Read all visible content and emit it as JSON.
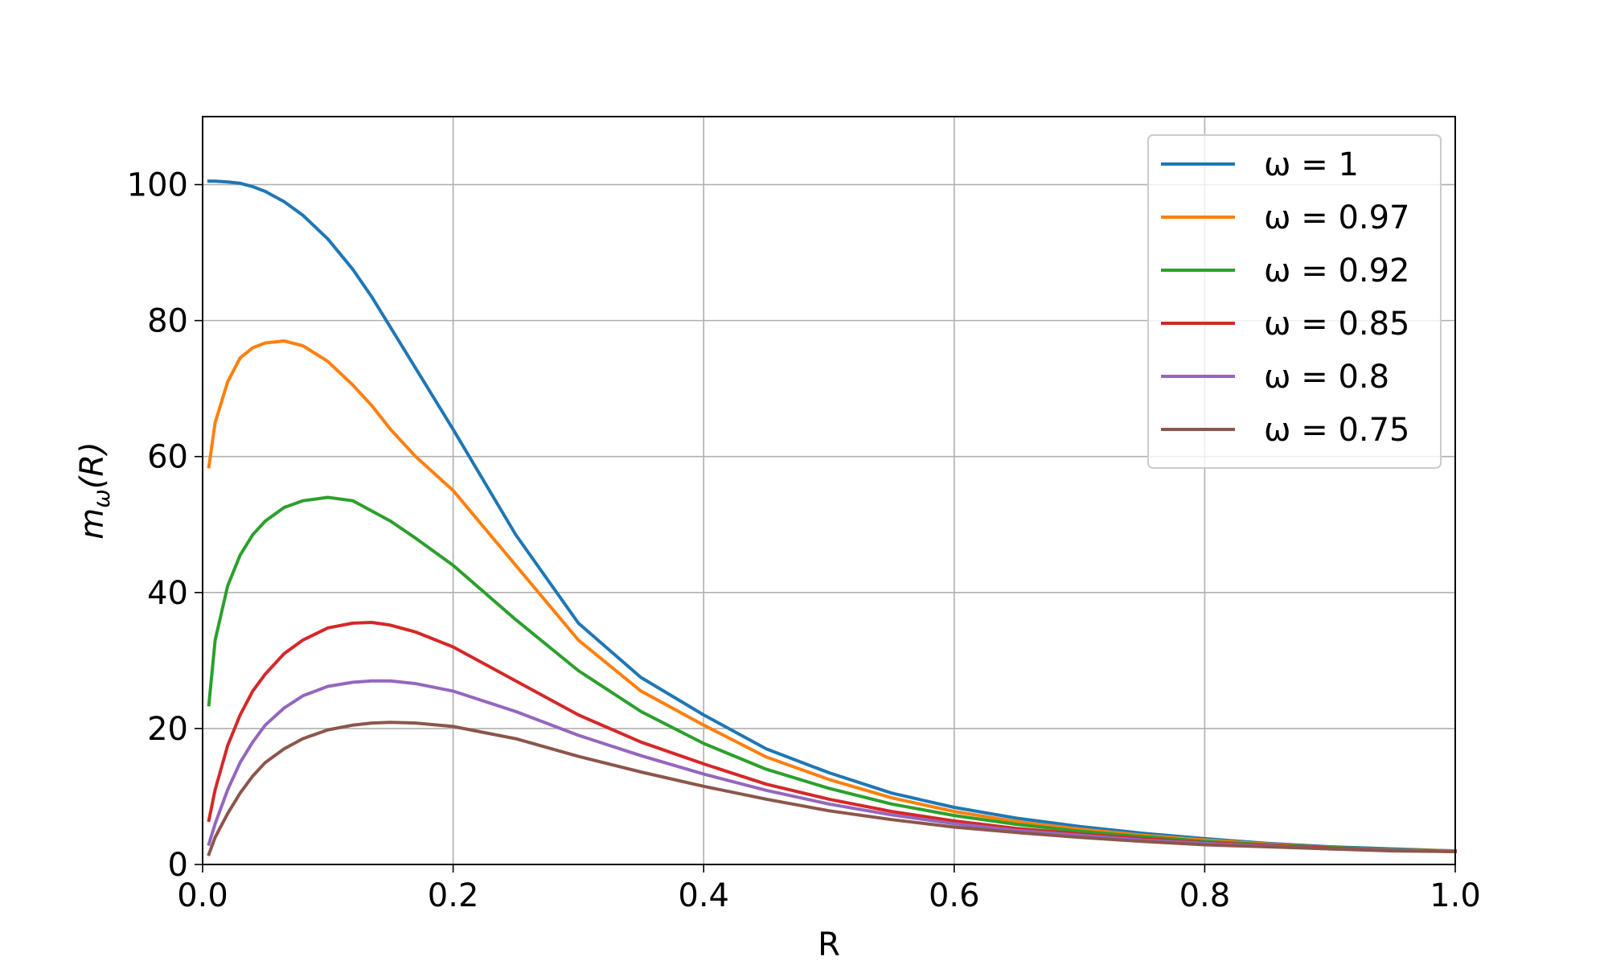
{
  "chart_data": {
    "type": "line",
    "title": "",
    "xlabel": "R",
    "ylabel_base": "m",
    "ylabel_sub": "ω",
    "ylabel_arg": "(R)",
    "xlim": [
      0.0,
      1.0
    ],
    "ylim": [
      0,
      110
    ],
    "xticks": [
      0.0,
      0.2,
      0.4,
      0.6,
      0.8,
      1.0
    ],
    "xtick_labels": [
      "0.0",
      "0.2",
      "0.4",
      "0.6",
      "0.8",
      "1.0"
    ],
    "yticks": [
      0,
      20,
      40,
      60,
      80,
      100
    ],
    "ytick_labels": [
      "0",
      "20",
      "40",
      "60",
      "80",
      "100"
    ],
    "grid": true,
    "legend_position": "top-right",
    "x": [
      0.005,
      0.01,
      0.02,
      0.03,
      0.04,
      0.05,
      0.065,
      0.08,
      0.1,
      0.12,
      0.135,
      0.15,
      0.17,
      0.2,
      0.25,
      0.3,
      0.35,
      0.4,
      0.45,
      0.5,
      0.55,
      0.6,
      0.65,
      0.7,
      0.75,
      0.8,
      0.85,
      0.9,
      0.95,
      1.0
    ],
    "series": [
      {
        "name": "ω = 1",
        "color": "#1f77b4",
        "values": [
          100.5,
          100.5,
          100.4,
          100.2,
          99.7,
          99.0,
          97.5,
          95.5,
          92.0,
          87.5,
          83.5,
          79.0,
          73.0,
          64.0,
          48.5,
          35.5,
          27.5,
          22.0,
          17.0,
          13.5,
          10.5,
          8.4,
          6.8,
          5.6,
          4.6,
          3.8,
          3.1,
          2.6,
          2.3,
          2.0
        ]
      },
      {
        "name": "ω = 0.97",
        "color": "#ff7f0e",
        "values": [
          58.5,
          65.0,
          71.0,
          74.5,
          76.0,
          76.7,
          77.0,
          76.3,
          74.0,
          70.5,
          67.5,
          64.0,
          60.0,
          55.0,
          44.0,
          33.0,
          25.5,
          20.5,
          15.8,
          12.5,
          9.8,
          7.8,
          6.3,
          5.2,
          4.3,
          3.6,
          3.0,
          2.5,
          2.2,
          2.0
        ]
      },
      {
        "name": "ω = 0.92",
        "color": "#2ca02c",
        "values": [
          23.5,
          33.0,
          41.0,
          45.5,
          48.5,
          50.5,
          52.5,
          53.5,
          54.0,
          53.5,
          52.0,
          50.5,
          48.0,
          44.0,
          36.0,
          28.5,
          22.5,
          17.8,
          14.0,
          11.2,
          8.9,
          7.2,
          5.9,
          4.9,
          4.1,
          3.4,
          2.9,
          2.5,
          2.2,
          1.9
        ]
      },
      {
        "name": "ω = 0.85",
        "color": "#d62728",
        "values": [
          6.5,
          11.0,
          17.5,
          22.0,
          25.5,
          28.0,
          31.0,
          33.0,
          34.8,
          35.5,
          35.6,
          35.2,
          34.2,
          32.0,
          27.0,
          22.0,
          18.0,
          14.8,
          11.8,
          9.6,
          7.8,
          6.4,
          5.3,
          4.5,
          3.8,
          3.2,
          2.8,
          2.4,
          2.1,
          1.9
        ]
      },
      {
        "name": "ω = 0.8",
        "color": "#9467bd",
        "values": [
          3.0,
          6.0,
          11.0,
          15.0,
          18.0,
          20.5,
          23.0,
          24.8,
          26.2,
          26.8,
          27.0,
          27.0,
          26.6,
          25.5,
          22.5,
          19.0,
          16.0,
          13.3,
          10.9,
          8.9,
          7.3,
          6.0,
          5.0,
          4.3,
          3.6,
          3.1,
          2.7,
          2.3,
          2.1,
          1.9
        ]
      },
      {
        "name": "ω = 0.75",
        "color": "#8c564b",
        "values": [
          1.5,
          4.0,
          7.5,
          10.5,
          13.0,
          15.0,
          17.0,
          18.5,
          19.8,
          20.5,
          20.8,
          20.9,
          20.8,
          20.3,
          18.5,
          15.9,
          13.6,
          11.5,
          9.6,
          7.9,
          6.6,
          5.5,
          4.7,
          4.0,
          3.4,
          2.9,
          2.6,
          2.3,
          2.0,
          1.9
        ]
      }
    ]
  }
}
